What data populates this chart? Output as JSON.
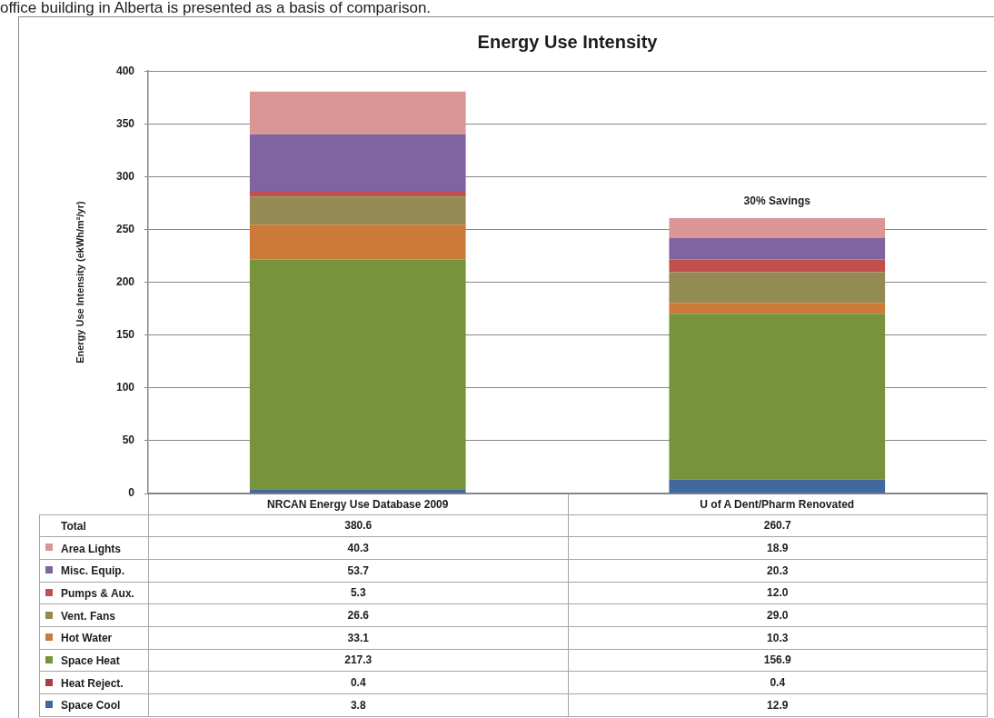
{
  "chart_data": {
    "type": "bar",
    "title": "Energy Use Intensity",
    "ylabel": "Energy Use Intensity (ekWh/m²/yr)",
    "categories": [
      "NRCAN Energy Use Database 2009",
      "U of A Dent/Pharm Renovated"
    ],
    "stacked": true,
    "series": [
      {
        "name": "Space Cool",
        "color": "#4169a0",
        "values": [
          3.8,
          12.9
        ],
        "value_labels": [
          "3.8",
          "12.9"
        ]
      },
      {
        "name": "Heat Reject.",
        "color": "#a5403d",
        "values": [
          0.4,
          0.4
        ],
        "value_labels": [
          "0.4",
          "0.4"
        ]
      },
      {
        "name": "Space Heat",
        "color": "#77933c",
        "values": [
          217.3,
          156.9
        ],
        "value_labels": [
          "217.3",
          "156.9"
        ]
      },
      {
        "name": "Hot Water",
        "color": "#cc7a38",
        "values": [
          33.1,
          10.3
        ],
        "value_labels": [
          "33.1",
          "10.3"
        ]
      },
      {
        "name": "Vent. Fans",
        "color": "#948a54",
        "values": [
          26.6,
          29.0
        ],
        "value_labels": [
          "26.6",
          "29.0"
        ]
      },
      {
        "name": "Pumps & Aux.",
        "color": "#c0504d",
        "values": [
          5.3,
          12.0
        ],
        "value_labels": [
          "5.3",
          "12.0"
        ]
      },
      {
        "name": "Misc. Equip.",
        "color": "#8064a2",
        "values": [
          53.7,
          20.3
        ],
        "value_labels": [
          "53.7",
          "20.3"
        ]
      },
      {
        "name": "Area Lights",
        "color": "#d99694",
        "values": [
          40.3,
          18.9
        ],
        "value_labels": [
          "40.3",
          "18.9"
        ]
      }
    ],
    "totals": [
      "380.6",
      "260.7"
    ],
    "ylim": [
      0,
      400
    ],
    "yticks": [
      0,
      50,
      100,
      150,
      200,
      250,
      300,
      350,
      400
    ],
    "grid": "y",
    "legend": "bottom",
    "annotations": [
      "office building in Alberta is presented as a basis of comparison.",
      {
        "text": "30% Savings",
        "x": "U of A Dent/Pharm Renovated",
        "y": 260.7
      },
      "Total"
    ]
  }
}
